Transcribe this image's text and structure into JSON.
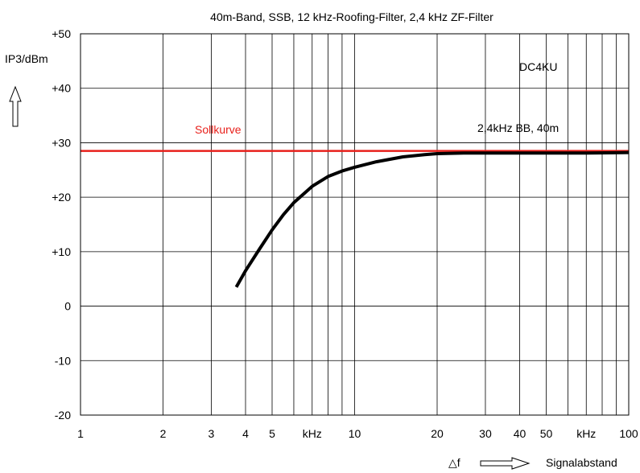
{
  "chart_data": {
    "type": "line",
    "title": "40m-Band, SSB, 12 kHz-Roofing-Filter, 2,4 kHz ZF-Filter",
    "ylabel": "IP3/dBm",
    "xlabel": "Signalabstand",
    "xlabel_symbol": "△f",
    "x_scale": "log",
    "xlim": [
      1,
      100
    ],
    "ylim": [
      -20,
      50
    ],
    "grid": true,
    "yticks": [
      {
        "value": 50,
        "label": "+50"
      },
      {
        "value": 40,
        "label": "+40"
      },
      {
        "value": 30,
        "label": "+30"
      },
      {
        "value": 20,
        "label": "+20"
      },
      {
        "value": 10,
        "label": "+10"
      },
      {
        "value": 0,
        "label": "0"
      },
      {
        "value": -10,
        "label": "-10"
      },
      {
        "value": -20,
        "label": "-20"
      }
    ],
    "xticks": [
      {
        "value": 1,
        "label": "1"
      },
      {
        "value": 2,
        "label": "2"
      },
      {
        "value": 3,
        "label": "3"
      },
      {
        "value": 4,
        "label": "4"
      },
      {
        "value": 5,
        "label": "5"
      },
      {
        "value": 7,
        "label": "kHz"
      },
      {
        "value": 10,
        "label": "10"
      },
      {
        "value": 20,
        "label": "20"
      },
      {
        "value": 30,
        "label": "30"
      },
      {
        "value": 40,
        "label": "40"
      },
      {
        "value": 50,
        "label": "50"
      },
      {
        "value": 70,
        "label": "kHz"
      },
      {
        "value": 100,
        "label": "100"
      }
    ],
    "series": [
      {
        "name": "Sollkurve",
        "color": "#e8201b",
        "x": [
          1,
          100
        ],
        "y": [
          28.5,
          28.5
        ]
      },
      {
        "name": "2,4kHz BB, 40m",
        "color": "#000000",
        "x": [
          3.7,
          4,
          4.5,
          5,
          5.5,
          6,
          7,
          8,
          9,
          10,
          12,
          15,
          18,
          20,
          25,
          30,
          40,
          50,
          70,
          100
        ],
        "y": [
          3.5,
          6.5,
          10.5,
          14,
          16.8,
          19,
          22,
          23.8,
          24.8,
          25.5,
          26.5,
          27.4,
          27.8,
          28,
          28.1,
          28.1,
          28.1,
          28.1,
          28.1,
          28.2
        ]
      }
    ],
    "annotations": {
      "author": "DC4KU"
    }
  }
}
